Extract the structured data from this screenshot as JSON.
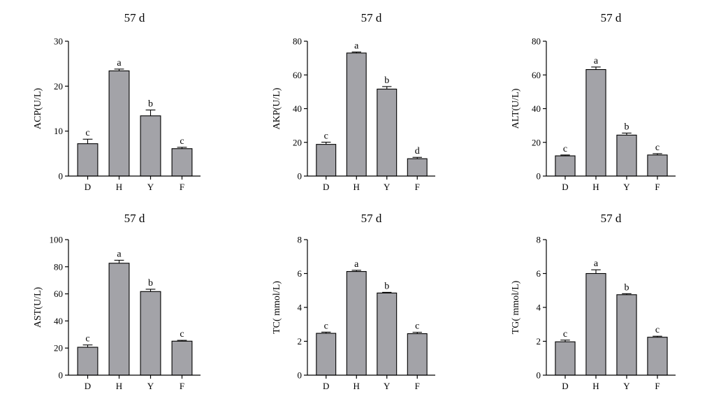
{
  "colors": {
    "bar_fill": "#a3a3a8",
    "axis": "#000000",
    "background": "#ffffff"
  },
  "chart_data": [
    {
      "type": "bar",
      "title": "57 d",
      "ylabel": "ACP(U/L)",
      "categories": [
        "D",
        "H",
        "Y",
        "F"
      ],
      "values": [
        7.2,
        23.4,
        13.4,
        6.1
      ],
      "errors": [
        1.0,
        0.4,
        1.3,
        0.3
      ],
      "significance": [
        "c",
        "a",
        "b",
        "c"
      ],
      "ylim": [
        0,
        30
      ],
      "yticks": [
        0,
        10,
        20,
        30
      ]
    },
    {
      "type": "bar",
      "title": "57 d",
      "ylabel": "AKP(U/L)",
      "categories": [
        "D",
        "H",
        "Y",
        "F"
      ],
      "values": [
        18.8,
        73.0,
        51.6,
        10.3
      ],
      "errors": [
        1.3,
        0.6,
        1.5,
        0.8
      ],
      "significance": [
        "c",
        "a",
        "b",
        "d"
      ],
      "ylim": [
        0,
        80
      ],
      "yticks": [
        0,
        20,
        40,
        60,
        80
      ]
    },
    {
      "type": "bar",
      "title": "57 d",
      "ylabel": "ALT(U/L)",
      "categories": [
        "D",
        "H",
        "Y",
        "F"
      ],
      "values": [
        12.0,
        63.2,
        24.3,
        12.5
      ],
      "errors": [
        0.5,
        1.5,
        1.2,
        0.8
      ],
      "significance": [
        "c",
        "a",
        "b",
        "c"
      ],
      "ylim": [
        0,
        80
      ],
      "yticks": [
        0,
        20,
        40,
        60,
        80
      ]
    },
    {
      "type": "bar",
      "title": "57 d",
      "ylabel": "AST(U/L)",
      "categories": [
        "D",
        "H",
        "Y",
        "F"
      ],
      "values": [
        20.6,
        82.6,
        61.7,
        25.1
      ],
      "errors": [
        1.7,
        2.2,
        1.7,
        0.6
      ],
      "significance": [
        "c",
        "a",
        "b",
        "c"
      ],
      "ylim": [
        0,
        100
      ],
      "yticks": [
        0,
        20,
        40,
        60,
        80,
        100
      ]
    },
    {
      "type": "bar",
      "title": "57 d",
      "ylabel": "TC( mmol/L)",
      "categories": [
        "D",
        "H",
        "Y",
        "F"
      ],
      "values": [
        2.47,
        6.12,
        4.85,
        2.45
      ],
      "errors": [
        0.07,
        0.07,
        0.04,
        0.08
      ],
      "significance": [
        "c",
        "a",
        "b",
        "c"
      ],
      "ylim": [
        0,
        8
      ],
      "yticks": [
        0,
        2,
        4,
        6,
        8
      ]
    },
    {
      "type": "bar",
      "title": "57 d",
      "ylabel": "TG( mmol/L)",
      "categories": [
        "D",
        "H",
        "Y",
        "F"
      ],
      "values": [
        1.97,
        6.0,
        4.75,
        2.24
      ],
      "errors": [
        0.1,
        0.22,
        0.06,
        0.06
      ],
      "significance": [
        "c",
        "a",
        "b",
        "c"
      ],
      "ylim": [
        0,
        8
      ],
      "yticks": [
        0,
        2,
        4,
        6,
        8
      ]
    }
  ]
}
